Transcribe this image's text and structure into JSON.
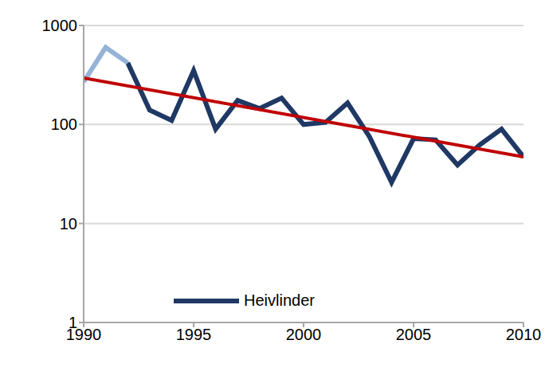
{
  "chart_data": {
    "type": "line",
    "x": [
      1990,
      1991,
      1992,
      1993,
      1994,
      1995,
      1996,
      1997,
      1998,
      1999,
      2000,
      2001,
      2002,
      2003,
      2004,
      2005,
      2006,
      2007,
      2008,
      2009,
      2010
    ],
    "series": [
      {
        "name": "Heivlinder",
        "color": "#1f3864",
        "values": [
          null,
          null,
          420,
          140,
          110,
          350,
          90,
          175,
          145,
          185,
          100,
          105,
          165,
          75,
          26,
          72,
          70,
          39,
          62,
          90,
          47
        ]
      },
      {
        "color": "#95b3d7",
        "values": [
          270,
          600,
          420,
          null,
          null,
          null,
          null,
          null,
          null,
          null,
          null,
          null,
          null,
          null,
          null,
          null,
          null,
          null,
          null,
          null,
          null
        ]
      },
      {
        "color": "#c00000",
        "values": [
          295,
          null,
          null,
          null,
          null,
          null,
          null,
          null,
          null,
          null,
          null,
          null,
          null,
          null,
          null,
          null,
          null,
          null,
          null,
          null,
          47
        ]
      }
    ],
    "xlim": [
      1990,
      2010
    ],
    "xticks": [
      1990,
      1995,
      2000,
      2005,
      2010
    ],
    "ylim": [
      1,
      1000
    ],
    "yticks": [
      1,
      10,
      100,
      1000
    ],
    "log": "y",
    "grid": true,
    "legend": "lower left"
  }
}
